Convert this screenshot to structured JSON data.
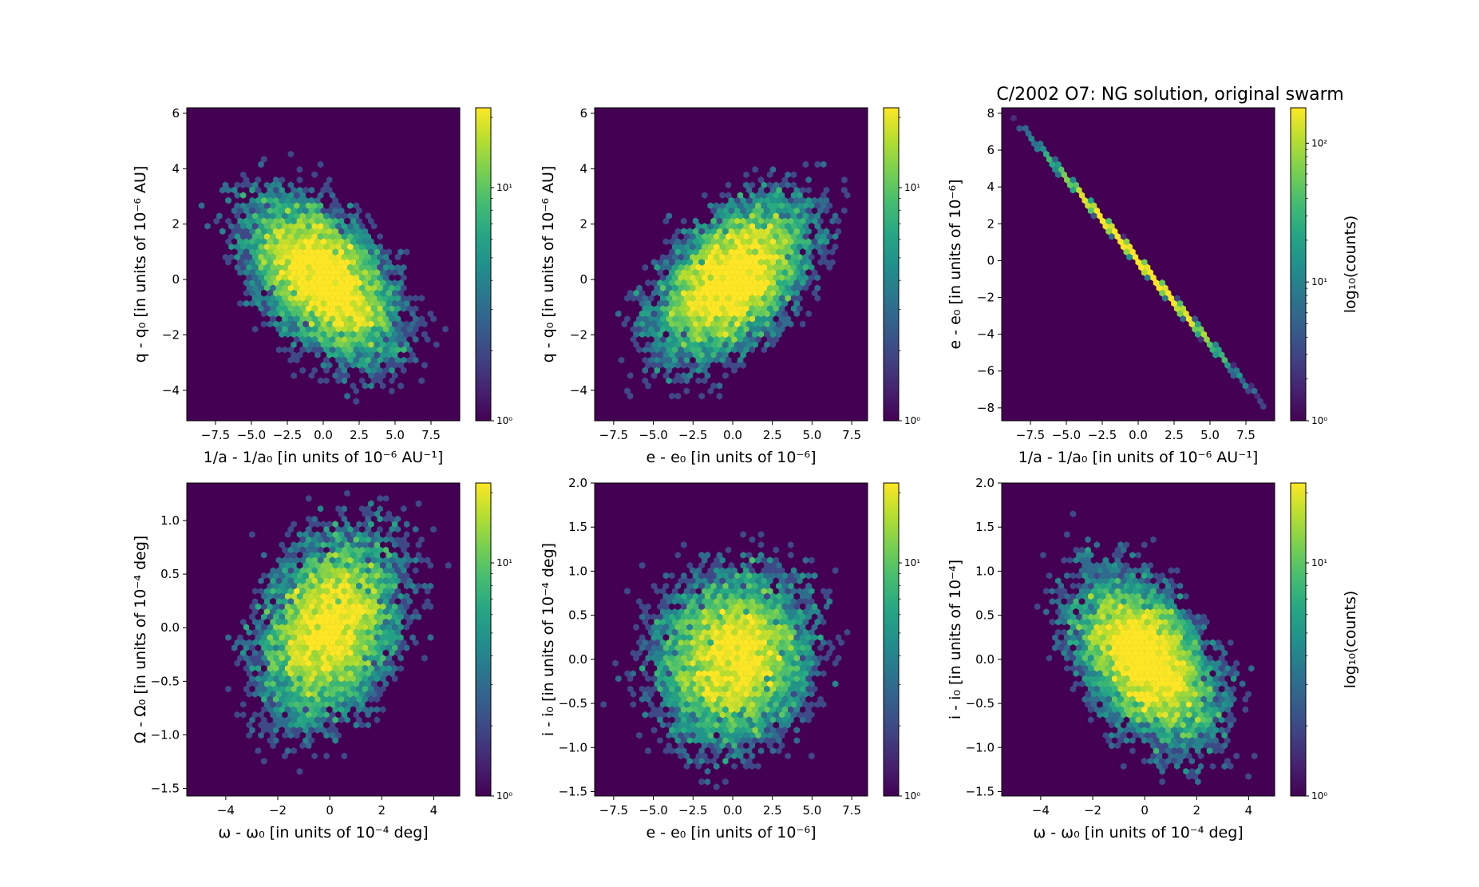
{
  "figure": {
    "title": "C/2002 O7:  NG solution, original swarm",
    "colormap": "viridis",
    "colors": {
      "background": "#440154",
      "mid": "#21918c",
      "high": "#fde725"
    }
  },
  "chart_data": [
    {
      "type": "heatmap",
      "style": "hexbin",
      "xlabel": "1/a - 1/a₀ [in units of 10⁻⁶ AU⁻¹]",
      "ylabel": "q - q₀ [in units of 10⁻⁶ AU]",
      "xlim": [
        -9.5,
        9.5
      ],
      "ylim": [
        -5.1,
        6.2
      ],
      "xticks": [
        -7.5,
        -5.0,
        -2.5,
        0.0,
        2.5,
        5.0,
        7.5
      ],
      "xtick_labels": [
        "−7.5",
        "−5.0",
        "−2.5",
        "0.0",
        "2.5",
        "5.0",
        "7.5"
      ],
      "yticks": [
        -4,
        -2,
        0,
        2,
        4,
        6
      ],
      "ytick_labels": [
        "−4",
        "−2",
        "0",
        "2",
        "4",
        "6"
      ],
      "distribution": {
        "center": [
          0,
          0
        ],
        "sigma": [
          2.7,
          1.5
        ],
        "correlation": -0.5
      },
      "colorbar": {
        "scale": "log",
        "ticks": [
          "10⁰",
          "10¹"
        ],
        "max": 22,
        "label": ""
      }
    },
    {
      "type": "heatmap",
      "style": "hexbin",
      "xlabel": "e - e₀ [in units of 10⁻⁶]",
      "ylabel": "q - q₀ [in units of 10⁻⁶ AU]",
      "xlim": [
        -8.7,
        8.5
      ],
      "ylim": [
        -5.1,
        6.2
      ],
      "xticks": [
        -7.5,
        -5.0,
        -2.5,
        0.0,
        2.5,
        5.0,
        7.5
      ],
      "xtick_labels": [
        "−7.5",
        "−5.0",
        "−2.5",
        "0.0",
        "2.5",
        "5.0",
        "7.5"
      ],
      "yticks": [
        -4,
        -2,
        0,
        2,
        4,
        6
      ],
      "ytick_labels": [
        "−4",
        "−2",
        "0",
        "2",
        "4",
        "6"
      ],
      "distribution": {
        "center": [
          0,
          0
        ],
        "sigma": [
          2.5,
          1.5
        ],
        "correlation": 0.5
      },
      "colorbar": {
        "scale": "log",
        "ticks": [
          "10⁰",
          "10¹"
        ],
        "max": 22,
        "label": ""
      }
    },
    {
      "type": "heatmap",
      "style": "hexbin",
      "xlabel": "1/a - 1/a₀ [in units of 10⁻⁶ AU⁻¹]",
      "ylabel": "e - e₀ [in units of 10⁻⁶]",
      "xlim": [
        -9.5,
        9.5
      ],
      "ylim": [
        -8.7,
        8.3
      ],
      "xticks": [
        -7.5,
        -5.0,
        -2.5,
        0.0,
        2.5,
        5.0,
        7.5
      ],
      "xtick_labels": [
        "−7.5",
        "−5.0",
        "−2.5",
        "0.0",
        "2.5",
        "5.0",
        "7.5"
      ],
      "yticks": [
        -8,
        -6,
        -4,
        -2,
        0,
        2,
        4,
        6,
        8
      ],
      "ytick_labels": [
        "−8",
        "−6",
        "−4",
        "−2",
        "0",
        "2",
        "4",
        "6",
        "8"
      ],
      "distribution": {
        "center": [
          0,
          0
        ],
        "sigma": [
          2.7,
          0.05
        ],
        "line_slope": -0.9
      },
      "colorbar": {
        "scale": "log",
        "ticks": [
          "10⁰",
          "10¹",
          "10²"
        ],
        "max": 180,
        "label": "log₁₀(counts)"
      }
    },
    {
      "type": "heatmap",
      "style": "hexbin",
      "xlabel": "ω - ω₀ [in units of 10⁻⁴ deg]",
      "ylabel": "Ω - Ω₀ [in units of 10⁻⁴ deg]",
      "xlim": [
        -5.5,
        5.0
      ],
      "ylim": [
        -1.57,
        1.35
      ],
      "xticks": [
        -4,
        -2,
        0,
        2,
        4
      ],
      "xtick_labels": [
        "−4",
        "−2",
        "0",
        "2",
        "4"
      ],
      "yticks": [
        -1.5,
        -1.0,
        -0.5,
        0.0,
        0.5,
        1.0
      ],
      "ytick_labels": [
        "−1.5",
        "−1.0",
        "−0.5",
        "0.0",
        "0.5",
        "1.0"
      ],
      "distribution": {
        "center": [
          0,
          0
        ],
        "sigma": [
          1.4,
          0.45
        ],
        "correlation": 0.3
      },
      "colorbar": {
        "scale": "log",
        "ticks": [
          "10⁰",
          "10¹"
        ],
        "max": 22,
        "label": ""
      }
    },
    {
      "type": "heatmap",
      "style": "hexbin",
      "xlabel": "e - e₀ [in units of 10⁻⁶]",
      "ylabel": "i - i₀ [in units of 10⁻⁴ deg]",
      "xlim": [
        -8.7,
        8.5
      ],
      "ylim": [
        -1.55,
        2.0
      ],
      "xticks": [
        -7.5,
        -5.0,
        -2.5,
        0.0,
        2.5,
        5.0,
        7.5
      ],
      "xtick_labels": [
        "−7.5",
        "−5.0",
        "−2.5",
        "0.0",
        "2.5",
        "5.0",
        "7.5"
      ],
      "yticks": [
        -1.5,
        -1.0,
        -0.5,
        0.0,
        0.5,
        1.0,
        1.5,
        2.0
      ],
      "ytick_labels": [
        "−1.5",
        "−1.0",
        "−0.5",
        "0.0",
        "0.5",
        "1.0",
        "1.5",
        "2.0"
      ],
      "distribution": {
        "center": [
          0,
          0
        ],
        "sigma": [
          2.5,
          0.5
        ],
        "correlation": 0.1
      },
      "colorbar": {
        "scale": "log",
        "ticks": [
          "10⁰",
          "10¹"
        ],
        "max": 22,
        "label": ""
      }
    },
    {
      "type": "heatmap",
      "style": "hexbin",
      "xlabel": "ω - ω₀ [in units of 10⁻⁴ deg]",
      "ylabel": "i - i₀ [in units of 10⁻⁴]",
      "xlim": [
        -5.5,
        5.0
      ],
      "ylim": [
        -1.55,
        2.0
      ],
      "xticks": [
        -4,
        -2,
        0,
        2,
        4
      ],
      "xtick_labels": [
        "−4",
        "−2",
        "0",
        "2",
        "4"
      ],
      "yticks": [
        -1.5,
        -1.0,
        -0.5,
        0.0,
        0.5,
        1.0,
        1.5,
        2.0
      ],
      "ytick_labels": [
        "−1.5",
        "−1.0",
        "−0.5",
        "0.0",
        "0.5",
        "1.0",
        "1.5",
        "2.0"
      ],
      "distribution": {
        "center": [
          0,
          0
        ],
        "sigma": [
          1.4,
          0.5
        ],
        "correlation": -0.45
      },
      "colorbar": {
        "scale": "log",
        "ticks": [
          "10⁰",
          "10¹"
        ],
        "max": 22,
        "label": "log₁₀(counts)"
      }
    }
  ]
}
